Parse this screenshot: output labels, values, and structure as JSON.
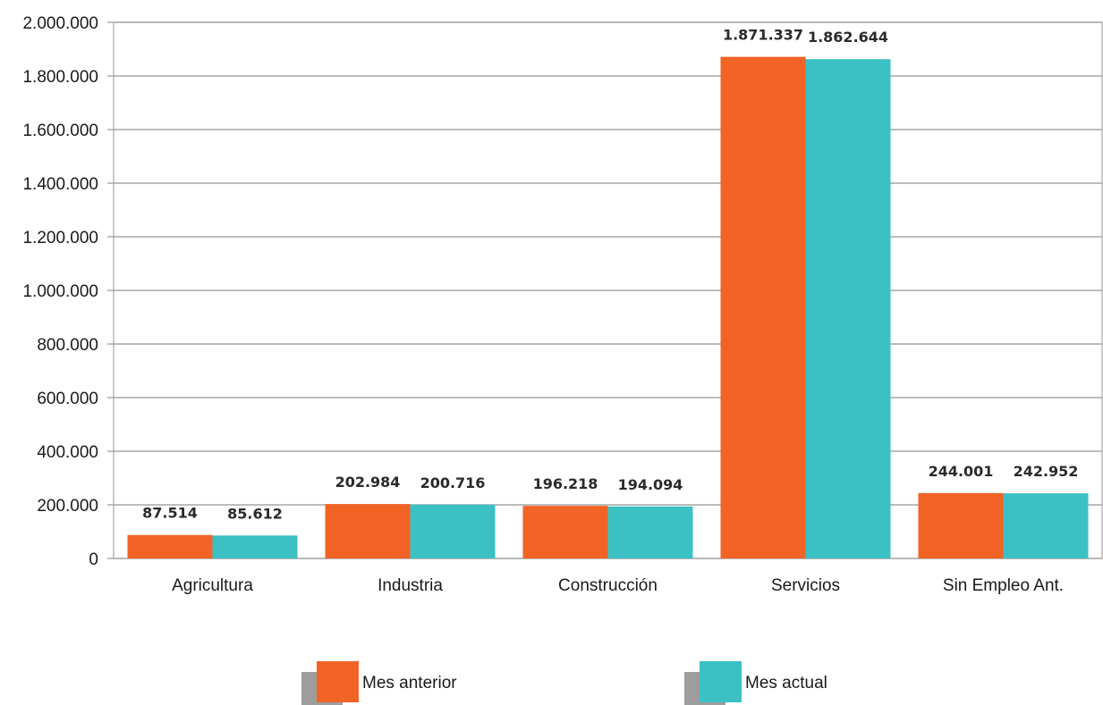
{
  "chart_data": {
    "type": "bar",
    "categories": [
      "Agricultura",
      "Industria",
      "Construcción",
      "Servicios",
      "Sin Empleo Ant."
    ],
    "series": [
      {
        "name": "Mes anterior",
        "color": "#f26326",
        "values": [
          87514,
          202984,
          196218,
          1871337,
          244001
        ],
        "labels": [
          "87.514",
          "202.984",
          "196.218",
          "1.871.337",
          "244.001"
        ]
      },
      {
        "name": "Mes actual",
        "color": "#3bc1c4",
        "values": [
          85612,
          200716,
          194094,
          1862644,
          242952
        ],
        "labels": [
          "85.612",
          "200.716",
          "194.094",
          "1.862.644",
          "242.952"
        ]
      }
    ],
    "title": "",
    "xlabel": "",
    "ylabel": "",
    "ylim": [
      0,
      2000000
    ],
    "yticks": [
      0,
      200000,
      400000,
      600000,
      800000,
      1000000,
      1200000,
      1400000,
      1600000,
      1800000,
      2000000
    ],
    "ytick_labels": [
      "0",
      "200.000",
      "400.000",
      "600.000",
      "800.000",
      "1.000.000",
      "1.200.000",
      "1.400.000",
      "1.600.000",
      "1.800.000",
      "2.000.000"
    ],
    "grid": true,
    "legend_position": "bottom"
  },
  "colors": {
    "grid": "#a6a6a6",
    "legend_shadow": "#9d9d9d"
  }
}
